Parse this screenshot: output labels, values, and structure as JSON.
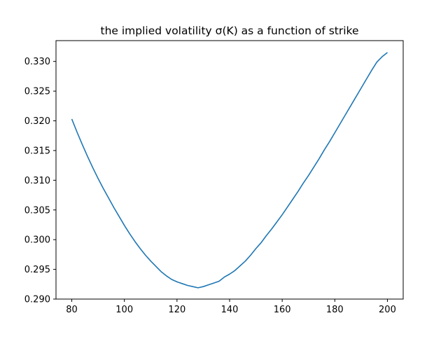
{
  "chart_data": {
    "type": "line",
    "title": "the implied volatility σ(K) as a function of strike",
    "xlabel": "",
    "ylabel": "",
    "xlim": [
      74,
      206
    ],
    "ylim": [
      0.29,
      0.3335
    ],
    "x_ticks": [
      80,
      100,
      120,
      140,
      160,
      180,
      200
    ],
    "y_ticks": [
      0.29,
      0.295,
      0.3,
      0.305,
      0.31,
      0.315,
      0.32,
      0.325,
      0.33
    ],
    "x_tick_labels": [
      "80",
      "100",
      "120",
      "140",
      "160",
      "180",
      "200"
    ],
    "y_tick_labels": [
      "0.290",
      "0.295",
      "0.300",
      "0.305",
      "0.310",
      "0.315",
      "0.320",
      "0.325",
      "0.330"
    ],
    "grid": false,
    "series": [
      {
        "color": "#1f77b4",
        "x": [
          80,
          82,
          84,
          86,
          88,
          90,
          92,
          94,
          96,
          98,
          100,
          102,
          104,
          106,
          108,
          110,
          112,
          114,
          116,
          118,
          120,
          122,
          124,
          126,
          128,
          130,
          132,
          134,
          136,
          138,
          140,
          142,
          144,
          146,
          148,
          150,
          152,
          154,
          156,
          158,
          160,
          162,
          164,
          166,
          168,
          170,
          172,
          174,
          176,
          178,
          180,
          182,
          184,
          186,
          188,
          190,
          192,
          194,
          196,
          198,
          200
        ],
        "y": [
          0.3203,
          0.3181,
          0.316,
          0.314,
          0.3121,
          0.3103,
          0.3086,
          0.307,
          0.3054,
          0.3039,
          0.3024,
          0.301,
          0.2997,
          0.2985,
          0.2974,
          0.2964,
          0.2955,
          0.2946,
          0.2939,
          0.2933,
          0.2929,
          0.2926,
          0.2923,
          0.2921,
          0.2919,
          0.2921,
          0.2924,
          0.2927,
          0.293,
          0.2937,
          0.2942,
          0.2948,
          0.2956,
          0.2964,
          0.2974,
          0.2985,
          0.2995,
          0.3007,
          0.3018,
          0.303,
          0.3042,
          0.3055,
          0.3068,
          0.3081,
          0.3095,
          0.3108,
          0.3122,
          0.3136,
          0.3151,
          0.3165,
          0.318,
          0.3195,
          0.321,
          0.3225,
          0.324,
          0.3255,
          0.327,
          0.3285,
          0.3299,
          0.3308,
          0.3315
        ]
      }
    ]
  }
}
